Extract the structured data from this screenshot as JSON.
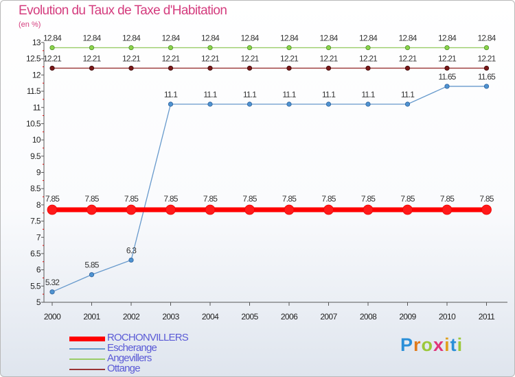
{
  "chart_data": {
    "type": "line",
    "title": "Evolution du Taux de Taxe d'Habitation",
    "ylabel": "(en %)",
    "xlabel": "",
    "x": [
      "2000",
      "2001",
      "2002",
      "2003",
      "2004",
      "2005",
      "2006",
      "2007",
      "2008",
      "2009",
      "2010",
      "2011"
    ],
    "ylim": [
      5,
      13
    ],
    "yticks": [
      "5",
      "5.5",
      "6",
      "6.5",
      "7",
      "7.5",
      "8",
      "8.5",
      "9",
      "9.5",
      "10",
      "10.5",
      "11",
      "11.5",
      "12",
      "12.5",
      "13"
    ],
    "grid": false,
    "series": [
      {
        "name": "ROCHONVILLERS",
        "color": "#ff0000",
        "values": [
          7.85,
          7.85,
          7.85,
          7.85,
          7.85,
          7.85,
          7.85,
          7.85,
          7.85,
          7.85,
          7.85,
          7.85
        ],
        "labels": [
          "7.85",
          "7.85",
          "7.85",
          "7.85",
          "7.85",
          "7.85",
          "7.85",
          "7.85",
          "7.85",
          "7.85",
          "7.85",
          "7.85"
        ]
      },
      {
        "name": "Escherange",
        "color": "#6699cc",
        "values": [
          5.32,
          5.85,
          6.3,
          11.1,
          11.1,
          11.1,
          11.1,
          11.1,
          11.1,
          11.1,
          11.65,
          11.65
        ],
        "labels": [
          "5.32",
          "5.85",
          "6.3",
          "11.1",
          "11.1",
          "11.1",
          "11.1",
          "11.1",
          "11.1",
          "11.1",
          "11.65",
          "11.65"
        ]
      },
      {
        "name": "Angevillers",
        "color": "#99cc66",
        "values": [
          12.84,
          12.84,
          12.84,
          12.84,
          12.84,
          12.84,
          12.84,
          12.84,
          12.84,
          12.84,
          12.84,
          12.84
        ],
        "labels": [
          "12.84",
          "12.84",
          "12.84",
          "12.84",
          "12.84",
          "12.84",
          "12.84",
          "12.84",
          "12.84",
          "12.84",
          "12.84",
          "12.84"
        ]
      },
      {
        "name": "Ottange",
        "color": "#993333",
        "values": [
          12.21,
          12.21,
          12.21,
          12.21,
          12.21,
          12.21,
          12.21,
          12.21,
          12.21,
          12.21,
          12.21,
          12.21
        ],
        "labels": [
          "12.21",
          "12.21",
          "12.21",
          "12.21",
          "12.21",
          "12.21",
          "12.21",
          "12.21",
          "12.21",
          "12.21",
          "12.21",
          "12.21"
        ]
      }
    ],
    "legend_position": "bottom-left"
  },
  "logo": {
    "text": "Proxiti"
  }
}
